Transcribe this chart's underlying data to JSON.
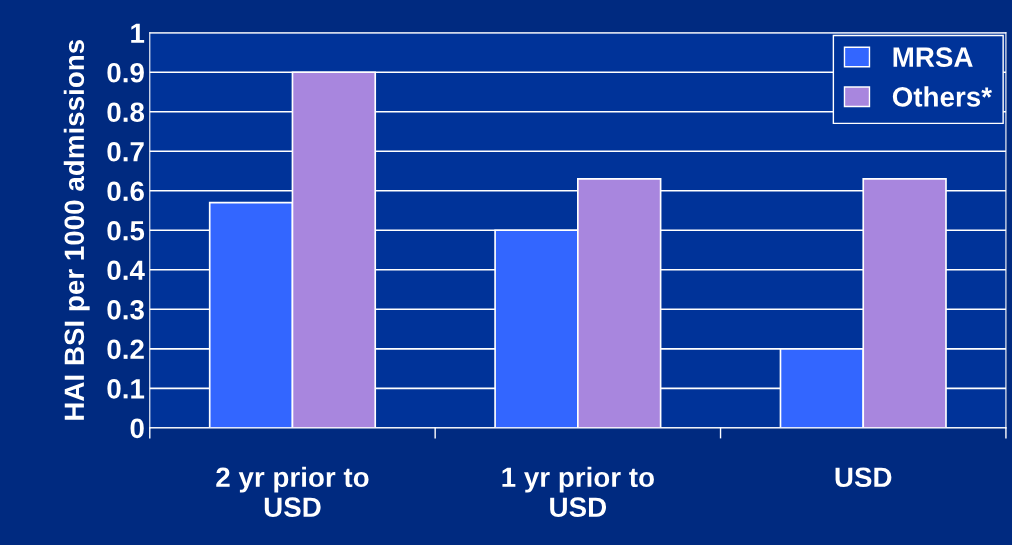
{
  "chart_data": {
    "type": "bar",
    "ylabel": "HAI BSI per 1000 admissions",
    "categories": [
      "2 yr prior to\nUSD",
      "1 yr prior to\nUSD",
      "USD"
    ],
    "series": [
      {
        "name": "MRSA",
        "color": "#3366ff",
        "values": [
          0.57,
          0.5,
          0.2
        ]
      },
      {
        "name": "Others*",
        "color": "#a886de",
        "values": [
          0.9,
          0.63,
          0.63
        ]
      }
    ],
    "ylim": [
      0,
      1
    ],
    "yticks": [
      0,
      0.1,
      0.2,
      0.3,
      0.4,
      0.5,
      0.6,
      0.7,
      0.8,
      0.9,
      1
    ],
    "grid": "y",
    "legend": "top right"
  }
}
